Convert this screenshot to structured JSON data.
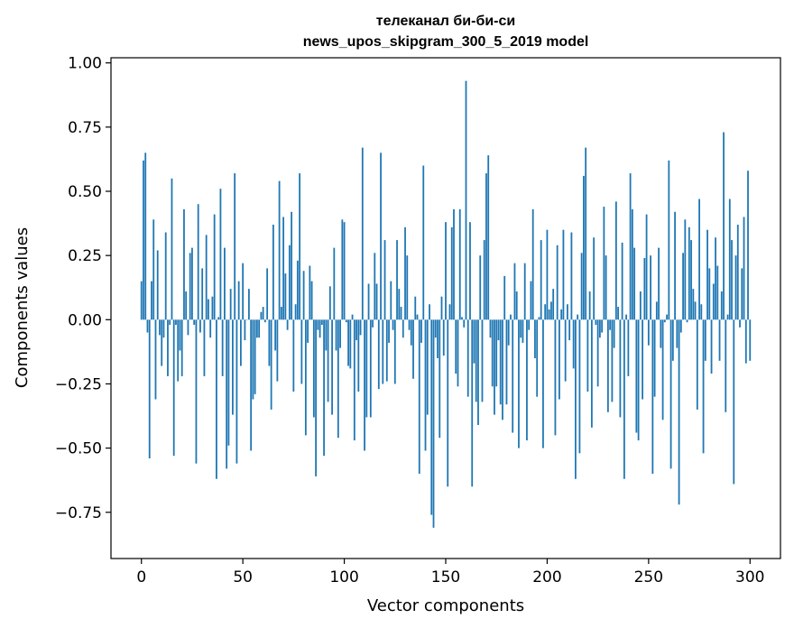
{
  "chart_data": {
    "type": "bar",
    "title_line1": "телеканал би-би-си",
    "title_line2": "news_upos_skipgram_300_5_2019 model",
    "xlabel": "Vector components",
    "ylabel": "Components values",
    "xlim": [
      -15,
      315
    ],
    "ylim": [
      -0.93,
      1.02
    ],
    "xticks": [
      0,
      50,
      100,
      150,
      200,
      250,
      300
    ],
    "yticks": [
      -0.75,
      -0.5,
      -0.25,
      0.0,
      0.25,
      0.5,
      0.75,
      1.0
    ],
    "xtick_labels": [
      "0",
      "50",
      "100",
      "150",
      "200",
      "250",
      "300"
    ],
    "ytick_labels": [
      "−0.75",
      "−0.50",
      "−0.25",
      "0.00",
      "0.25",
      "0.50",
      "0.75",
      "1.00"
    ],
    "bar_color": "#1f77b4",
    "grid": false,
    "values": [
      0.15,
      0.62,
      0.65,
      -0.05,
      -0.54,
      0.15,
      0.39,
      -0.31,
      0.27,
      -0.06,
      -0.18,
      -0.07,
      0.34,
      -0.22,
      -0.02,
      0.55,
      -0.53,
      -0.02,
      -0.24,
      -0.12,
      -0.22,
      0.43,
      0.11,
      -0.06,
      0.26,
      0.28,
      -0.02,
      -0.56,
      0.45,
      -0.05,
      0.2,
      -0.22,
      0.33,
      0.08,
      -0.07,
      0.09,
      0.41,
      -0.62,
      0.01,
      0.51,
      -0.22,
      0.28,
      -0.58,
      -0.49,
      0.12,
      -0.37,
      0.57,
      -0.56,
      0.15,
      -0.18,
      0.22,
      -0.08,
      0.0,
      0.12,
      -0.51,
      -0.31,
      -0.29,
      -0.07,
      -0.07,
      0.03,
      0.05,
      -0.01,
      0.2,
      -0.18,
      -0.35,
      0.37,
      -0.12,
      -0.24,
      0.54,
      0.05,
      0.4,
      0.18,
      -0.04,
      0.29,
      0.42,
      -0.28,
      0.06,
      0.23,
      0.57,
      -0.25,
      0.19,
      -0.45,
      -0.09,
      0.21,
      0.15,
      -0.38,
      -0.61,
      -0.04,
      -0.07,
      -0.02,
      -0.53,
      -0.12,
      -0.32,
      0.13,
      -0.37,
      0.28,
      -0.12,
      -0.46,
      -0.11,
      0.39,
      0.38,
      -0.01,
      -0.18,
      -0.19,
      0.02,
      -0.47,
      -0.08,
      -0.28,
      -0.06,
      0.67,
      -0.51,
      -0.38,
      0.14,
      -0.38,
      -0.03,
      0.26,
      0.14,
      -0.27,
      0.65,
      -0.25,
      0.31,
      -0.24,
      -0.09,
      0.15,
      -0.04,
      -0.25,
      0.31,
      0.12,
      0.05,
      -0.07,
      0.36,
      0.25,
      -0.04,
      -0.1,
      -0.23,
      0.09,
      0.02,
      -0.6,
      -0.09,
      0.6,
      -0.51,
      -0.37,
      0.06,
      -0.76,
      -0.81,
      -0.07,
      -0.15,
      -0.46,
      0.09,
      -0.14,
      0.38,
      -0.65,
      0.06,
      0.36,
      0.43,
      -0.21,
      -0.26,
      0.43,
      0.01,
      -0.03,
      0.93,
      -0.3,
      0.38,
      -0.65,
      -0.17,
      -0.32,
      -0.41,
      0.25,
      -0.32,
      0.31,
      0.57,
      0.64,
      -0.07,
      -0.26,
      -0.37,
      -0.26,
      -0.08,
      -0.33,
      -0.39,
      0.17,
      -0.33,
      -0.1,
      0.02,
      -0.44,
      0.22,
      0.11,
      -0.5,
      -0.07,
      -0.09,
      0.22,
      -0.47,
      -0.04,
      0.15,
      0.43,
      -0.15,
      -0.3,
      0.01,
      0.31,
      -0.5,
      0.06,
      0.35,
      0.04,
      0.07,
      0.12,
      -0.45,
      0.29,
      -0.31,
      0.04,
      0.35,
      -0.24,
      0.06,
      -0.08,
      0.34,
      -0.19,
      -0.62,
      0.02,
      -0.52,
      0.26,
      0.56,
      0.67,
      -0.28,
      0.11,
      -0.42,
      0.32,
      -0.02,
      -0.26,
      -0.07,
      -0.05,
      0.44,
      0.25,
      -0.36,
      -0.04,
      -0.32,
      -0.11,
      0.46,
      0.05,
      -0.38,
      0.3,
      -0.62,
      0.02,
      -0.22,
      0.57,
      0.43,
      0.28,
      -0.44,
      -0.47,
      0.11,
      -0.31,
      0.24,
      0.41,
      -0.1,
      0.25,
      -0.6,
      -0.3,
      0.07,
      0.28,
      -0.11,
      -0.39,
      -0.01,
      0.02,
      0.62,
      -0.58,
      -0.16,
      0.42,
      -0.11,
      -0.72,
      -0.05,
      0.26,
      0.39,
      -0.01,
      0.36,
      0.31,
      0.12,
      0.07,
      -0.35,
      0.47,
      0.06,
      -0.52,
      -0.16,
      0.35,
      0.2,
      -0.21,
      0.14,
      0.32,
      0.21,
      -0.16,
      0.11,
      0.73,
      -0.36,
      0.02,
      0.47,
      0.31,
      -0.64,
      0.25,
      0.37,
      -0.03,
      0.2,
      0.4,
      -0.17,
      0.58,
      -0.16
    ]
  }
}
